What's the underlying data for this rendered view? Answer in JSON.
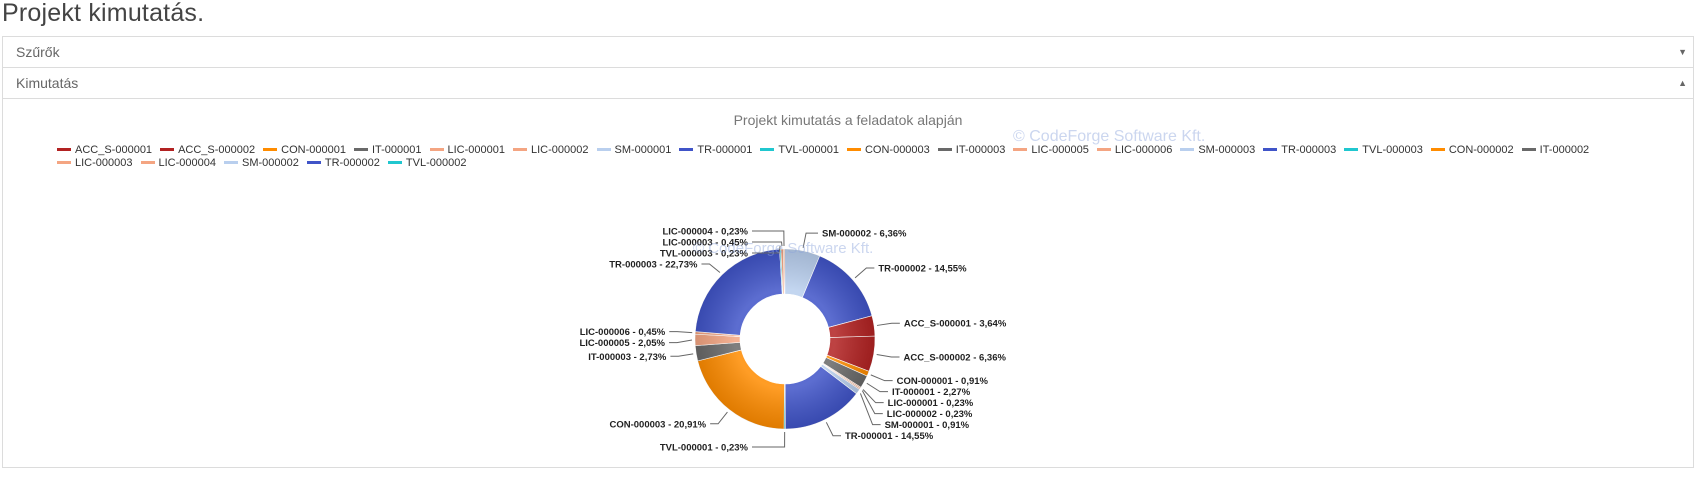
{
  "page": {
    "title": "Projekt kimutatás."
  },
  "panels": {
    "filters": {
      "title": "Szűrők",
      "caret": "▼"
    },
    "report": {
      "title": "Kimutatás",
      "caret": "▲"
    }
  },
  "watermark": "© CodeForge Software Kft.",
  "colors": {
    "text": "#333333",
    "border": "#dcdcdc",
    "title": "#777777"
  },
  "chart_data": {
    "type": "pie",
    "subtype": "donut",
    "title": "Projekt kimutatás a feladatok alapján",
    "unit": "%",
    "legend_position": "top",
    "legend": [
      {
        "name": "ACC_S-000001",
        "color": "#b22222"
      },
      {
        "name": "ACC_S-000002",
        "color": "#b22222"
      },
      {
        "name": "CON-000001",
        "color": "#ff8c00"
      },
      {
        "name": "IT-000001",
        "color": "#696969"
      },
      {
        "name": "LIC-000001",
        "color": "#f4a582"
      },
      {
        "name": "LIC-000002",
        "color": "#f4a582"
      },
      {
        "name": "SM-000001",
        "color": "#b9cfee"
      },
      {
        "name": "TR-000001",
        "color": "#4054c8"
      },
      {
        "name": "TVL-000001",
        "color": "#20c7cf"
      },
      {
        "name": "CON-000003",
        "color": "#ff8c00"
      },
      {
        "name": "IT-000003",
        "color": "#696969"
      },
      {
        "name": "LIC-000005",
        "color": "#f4a582"
      },
      {
        "name": "LIC-000006",
        "color": "#f4a582"
      },
      {
        "name": "SM-000003",
        "color": "#b9cfee"
      },
      {
        "name": "TR-000003",
        "color": "#4054c8"
      },
      {
        "name": "TVL-000003",
        "color": "#20c7cf"
      },
      {
        "name": "CON-000002",
        "color": "#ff8c00"
      },
      {
        "name": "IT-000002",
        "color": "#696969"
      },
      {
        "name": "LIC-000003",
        "color": "#f4a582"
      },
      {
        "name": "LIC-000004",
        "color": "#f4a582"
      },
      {
        "name": "SM-000002",
        "color": "#b9cfee"
      },
      {
        "name": "TR-000002",
        "color": "#4054c8"
      },
      {
        "name": "TVL-000002",
        "color": "#20c7cf"
      }
    ],
    "slices": [
      {
        "name": "SM-000002",
        "value": 6.36,
        "label": "SM-000002 - 6,36%",
        "color": "#b9cfee"
      },
      {
        "name": "TR-000002",
        "value": 14.55,
        "label": "TR-000002 - 14,55%",
        "color": "#4054c8"
      },
      {
        "name": "ACC_S-000001",
        "value": 3.64,
        "label": "ACC_S-000001 - 3,64%",
        "color": "#b22222"
      },
      {
        "name": "ACC_S-000002",
        "value": 6.36,
        "label": "ACC_S-000002 - 6,36%",
        "color": "#b22222"
      },
      {
        "name": "CON-000001",
        "value": 0.91,
        "label": "CON-000001 - 0,91%",
        "color": "#ff8c00"
      },
      {
        "name": "IT-000001",
        "value": 2.27,
        "label": "IT-000001 - 2,27%",
        "color": "#696969"
      },
      {
        "name": "LIC-000001",
        "value": 0.23,
        "label": "LIC-000001 - 0,23%",
        "color": "#f4a582"
      },
      {
        "name": "LIC-000002",
        "value": 0.23,
        "label": "LIC-000002 - 0,23%",
        "color": "#f4a582"
      },
      {
        "name": "SM-000001",
        "value": 0.91,
        "label": "SM-000001 - 0,91%",
        "color": "#b9cfee"
      },
      {
        "name": "TR-000001",
        "value": 14.55,
        "label": "TR-000001 - 14,55%",
        "color": "#4054c8"
      },
      {
        "name": "TVL-000001",
        "value": 0.23,
        "label": "TVL-000001 - 0,23%",
        "color": "#20c7cf"
      },
      {
        "name": "CON-000003",
        "value": 20.91,
        "label": "CON-000003 - 20,91%",
        "color": "#ff8c00"
      },
      {
        "name": "IT-000003",
        "value": 2.73,
        "label": "IT-000003 - 2,73%",
        "color": "#696969"
      },
      {
        "name": "LIC-000005",
        "value": 2.05,
        "label": "LIC-000005 - 2,05%",
        "color": "#f4a582"
      },
      {
        "name": "LIC-000006",
        "value": 0.45,
        "label": "LIC-000006 - 0,45%",
        "color": "#f4a582"
      },
      {
        "name": "TR-000003",
        "value": 22.73,
        "label": "TR-000003 - 22,73%",
        "color": "#4054c8"
      },
      {
        "name": "TVL-000003",
        "value": 0.23,
        "label": "TVL-000003 - 0,23%",
        "color": "#20c7cf"
      },
      {
        "name": "LIC-000003",
        "value": 0.45,
        "label": "LIC-000003 - 0,45%",
        "color": "#f4a582"
      },
      {
        "name": "LIC-000004",
        "value": 0.23,
        "label": "LIC-000004 - 0,23%",
        "color": "#f4a582"
      }
    ]
  }
}
